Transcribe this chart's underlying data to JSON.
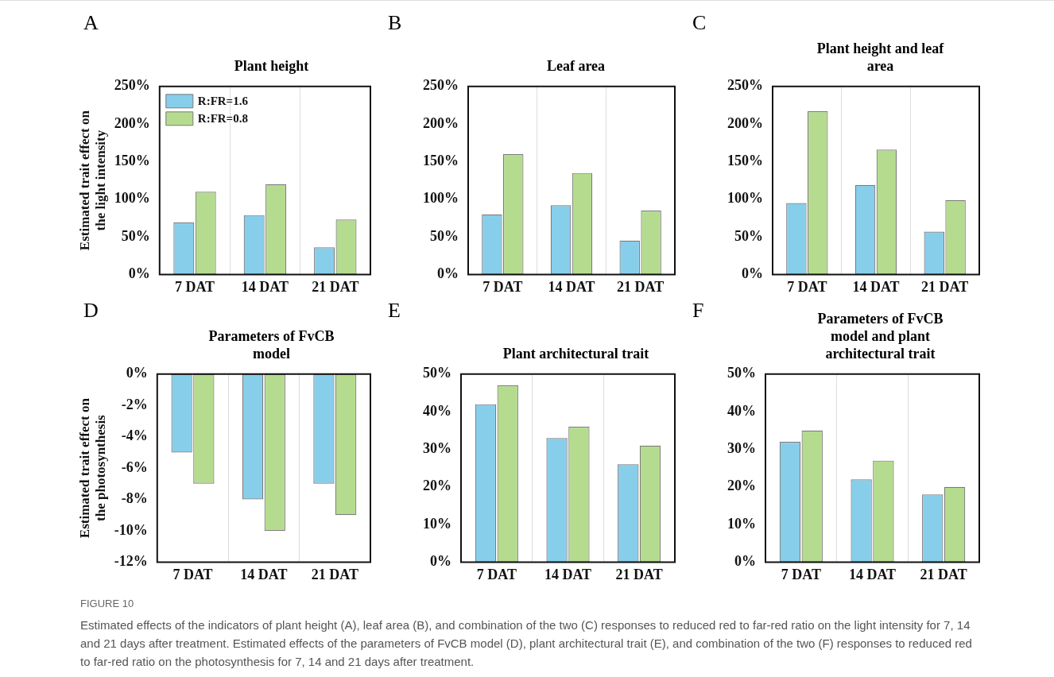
{
  "chart_data": [
    {
      "type": "bar",
      "title": "Plant height",
      "ylabel": "Estimated trait effect on\nthe light intensity",
      "annotations": [
        "A"
      ],
      "categories": [
        "7 DAT",
        "14 DAT",
        "21 DAT"
      ],
      "series": [
        {
          "name": "R:FR=1.6",
          "color": "#87ceeb",
          "values": [
            69,
            79,
            36
          ]
        },
        {
          "name": "R:FR=0.8",
          "color": "#b5dc8e",
          "values": [
            110,
            120,
            73
          ]
        }
      ],
      "ylim": [
        0,
        250
      ],
      "yticks": [
        {
          "value": 0,
          "label": "0%"
        },
        {
          "value": 50,
          "label": "50%"
        },
        {
          "value": 100,
          "label": "100%"
        },
        {
          "value": 150,
          "label": "150%"
        },
        {
          "value": 200,
          "label": "200%"
        },
        {
          "value": 250,
          "label": "250%"
        }
      ],
      "grid": "x",
      "legend": "top left"
    },
    {
      "type": "bar",
      "title": "Leaf area",
      "annotations": [
        "B"
      ],
      "categories": [
        "7 DAT",
        "14 DAT",
        "21 DAT"
      ],
      "series": [
        {
          "color": "#87ceeb",
          "values": [
            80,
            92,
            45
          ]
        },
        {
          "color": "#b5dc8e",
          "values": [
            160,
            135,
            85
          ]
        }
      ],
      "ylim": [
        0,
        250
      ],
      "yticks": [
        {
          "value": 0,
          "label": "0%"
        },
        {
          "value": 50,
          "label": "50%"
        },
        {
          "value": 100,
          "label": "100%"
        },
        {
          "value": 150,
          "label": "150%"
        },
        {
          "value": 200,
          "label": "200%"
        },
        {
          "value": 250,
          "label": "250%"
        }
      ],
      "grid": "x"
    },
    {
      "type": "bar",
      "title": "Plant height and leaf area",
      "annotations": [
        "C"
      ],
      "categories": [
        "7 DAT",
        "14 DAT",
        "21 DAT"
      ],
      "series": [
        {
          "color": "#87ceeb",
          "values": [
            95,
            119,
            57
          ]
        },
        {
          "color": "#b5dc8e",
          "values": [
            217,
            166,
            99
          ]
        }
      ],
      "ylim": [
        0,
        250
      ],
      "yticks": [
        {
          "value": 0,
          "label": "0%"
        },
        {
          "value": 50,
          "label": "50%"
        },
        {
          "value": 100,
          "label": "100%"
        },
        {
          "value": 150,
          "label": "150%"
        },
        {
          "value": 200,
          "label": "200%"
        },
        {
          "value": 250,
          "label": "250%"
        }
      ],
      "grid": "x"
    },
    {
      "type": "bar",
      "title": "Parameters of FvCB model",
      "ylabel": "Estimated trait effect on\nthe photosynthesis",
      "annotations": [
        "D"
      ],
      "categories": [
        "7 DAT",
        "14 DAT",
        "21 DAT"
      ],
      "series": [
        {
          "color": "#87ceeb",
          "values": [
            -5,
            -8,
            -7
          ]
        },
        {
          "color": "#b5dc8e",
          "values": [
            -7,
            -10,
            -9
          ]
        }
      ],
      "ylim": [
        -12,
        0
      ],
      "yticks": [
        {
          "value": -12,
          "label": "-12%"
        },
        {
          "value": -10,
          "label": "-10%"
        },
        {
          "value": -8,
          "label": "-8%"
        },
        {
          "value": -6,
          "label": "-6%"
        },
        {
          "value": -4,
          "label": "-4%"
        },
        {
          "value": -2,
          "label": "-2%"
        },
        {
          "value": 0,
          "label": "0%"
        }
      ],
      "grid": "x"
    },
    {
      "type": "bar",
      "title": "Plant architectural trait",
      "annotations": [
        "E"
      ],
      "categories": [
        "7 DAT",
        "14 DAT",
        "21 DAT"
      ],
      "series": [
        {
          "color": "#87ceeb",
          "values": [
            42,
            33,
            26
          ]
        },
        {
          "color": "#b5dc8e",
          "values": [
            47,
            36,
            31
          ]
        }
      ],
      "ylim": [
        0,
        50
      ],
      "yticks": [
        {
          "value": 0,
          "label": "0%"
        },
        {
          "value": 10,
          "label": "10%"
        },
        {
          "value": 20,
          "label": "20%"
        },
        {
          "value": 30,
          "label": "30%"
        },
        {
          "value": 40,
          "label": "40%"
        },
        {
          "value": 50,
          "label": "50%"
        }
      ],
      "grid": "x"
    },
    {
      "type": "bar",
      "title": "Parameters of FvCB model and plant architectural trait",
      "annotations": [
        "F",
        "FIGURE 10",
        "Estimated effects of the indicators of plant height (A), leaf area (B), and combination of the two (C) responses to reduced red to far-red ratio on the light intensity for 7, 14 and 21 days after treatment. Estimated effects of the parameters of FvCB model (D), plant architectural trait (E), and combination of the two (F) responses to reduced red to far-red ratio on the photosynthesis for 7, 14 and 21 days after treatment."
      ],
      "categories": [
        "7 DAT",
        "14 DAT",
        "21 DAT"
      ],
      "series": [
        {
          "color": "#87ceeb",
          "values": [
            32,
            22,
            18
          ]
        },
        {
          "color": "#b5dc8e",
          "values": [
            35,
            27,
            20
          ]
        }
      ],
      "ylim": [
        0,
        50
      ],
      "yticks": [
        {
          "value": 0,
          "label": "0%"
        },
        {
          "value": 10,
          "label": "10%"
        },
        {
          "value": 20,
          "label": "20%"
        },
        {
          "value": 30,
          "label": "30%"
        },
        {
          "value": 40,
          "label": "40%"
        },
        {
          "value": 50,
          "label": "50%"
        }
      ],
      "grid": "x"
    }
  ]
}
